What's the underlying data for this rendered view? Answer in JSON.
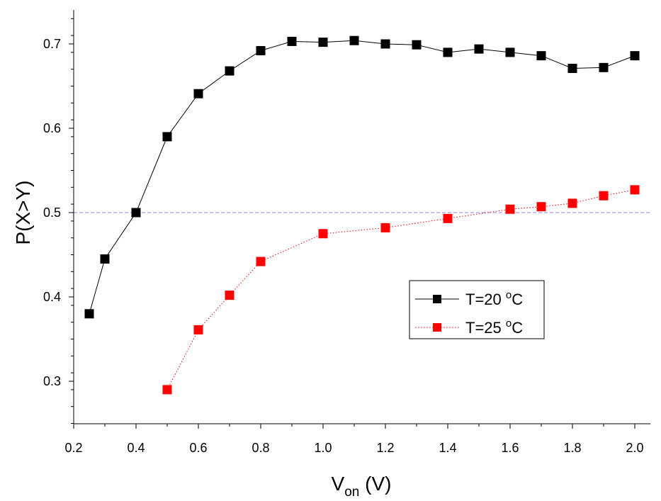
{
  "chart_data": {
    "type": "line",
    "title": "",
    "xlabel": {
      "main": "V",
      "sub": "on",
      "unit": " (V)"
    },
    "ylabel": "P(X>Y)",
    "xlim": [
      0.2,
      2.05
    ],
    "ylim": [
      0.25,
      0.74
    ],
    "x_ticks": [
      0.2,
      0.4,
      0.6,
      0.8,
      1.0,
      1.2,
      1.4,
      1.6,
      1.8,
      2.0
    ],
    "x_tick_labels": [
      "0.2",
      "0.4",
      "0.6",
      "0.8",
      "1.0",
      "1.2",
      "1.4",
      "1.6",
      "1.8",
      "2.0"
    ],
    "y_ticks": [
      0.3,
      0.4,
      0.5,
      0.6,
      0.7
    ],
    "y_tick_labels": [
      "0.3",
      "0.4",
      "0.5",
      "0.6",
      "0.7"
    ],
    "reference_line": {
      "y": 0.5,
      "color": "#8a8ae6",
      "style": "dashed"
    },
    "legend_position": "center-right",
    "series": [
      {
        "name": "T=20 °C",
        "legend_label": {
          "prefix": "T=20 ",
          "sup": "o",
          "suffix": "C"
        },
        "color": "#000000",
        "line_style": "solid",
        "x": [
          0.25,
          0.3,
          0.4,
          0.5,
          0.6,
          0.7,
          0.8,
          0.9,
          1.0,
          1.1,
          1.2,
          1.3,
          1.4,
          1.5,
          1.6,
          1.7,
          1.8,
          1.9,
          2.0
        ],
        "values": [
          0.38,
          0.445,
          0.5,
          0.59,
          0.641,
          0.668,
          0.692,
          0.703,
          0.702,
          0.704,
          0.7,
          0.699,
          0.69,
          0.694,
          0.69,
          0.686,
          0.671,
          0.672,
          0.686
        ]
      },
      {
        "name": "T=25 °C",
        "legend_label": {
          "prefix": "T=25 ",
          "sup": "o",
          "suffix": "C"
        },
        "color": "#ff0000",
        "line_style": "dotted",
        "x": [
          0.5,
          0.6,
          0.7,
          0.8,
          1.0,
          1.2,
          1.4,
          1.6,
          1.7,
          1.8,
          1.9,
          2.0
        ],
        "values": [
          0.29,
          0.361,
          0.402,
          0.442,
          0.475,
          0.482,
          0.493,
          0.504,
          0.507,
          0.511,
          0.52,
          0.527
        ]
      }
    ]
  }
}
